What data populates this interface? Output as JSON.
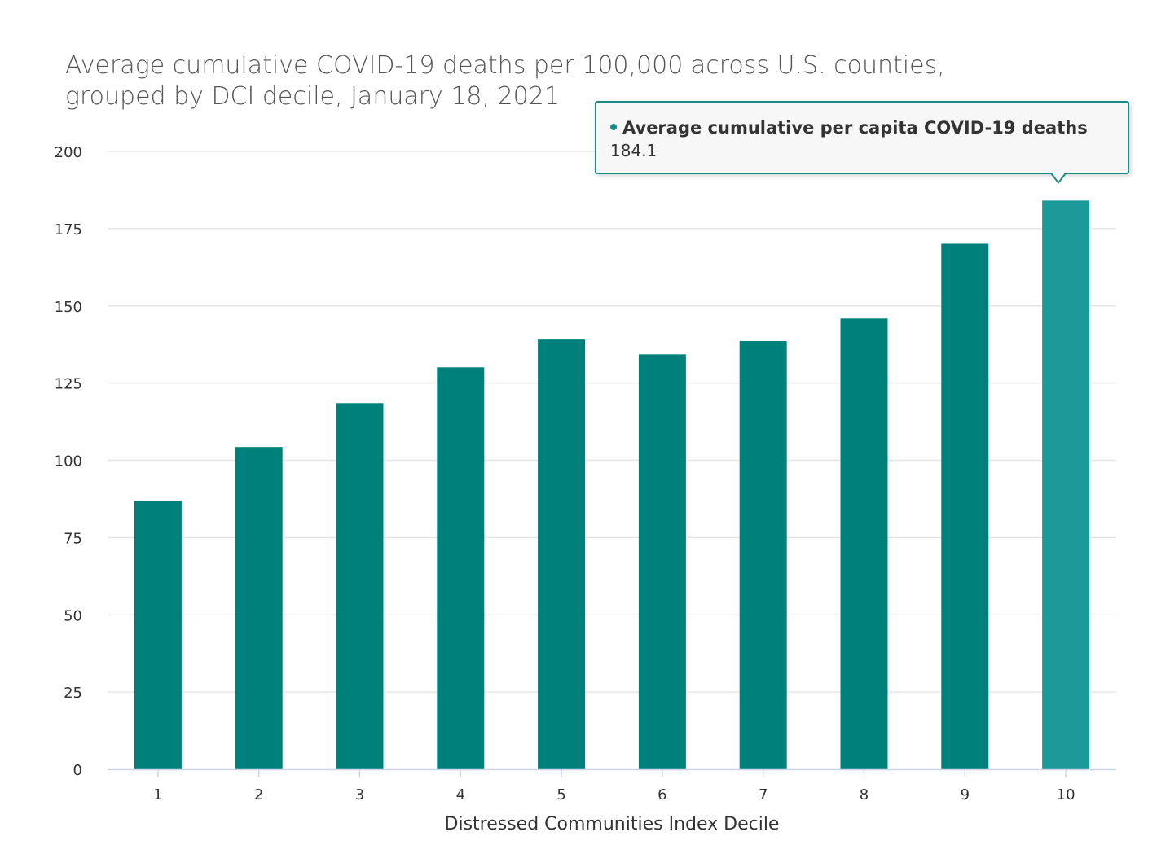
{
  "chart_data": {
    "type": "bar",
    "title": [
      "Average cumulative COVID-19 deaths per 100,000 across U.S. counties,",
      "grouped by DCI decile, January 18, 2021"
    ],
    "xlabel": "Distressed Communities Index Decile",
    "ylabel": "",
    "categories": [
      "1",
      "2",
      "3",
      "4",
      "5",
      "6",
      "7",
      "8",
      "9",
      "10"
    ],
    "series": [
      {
        "name": "Average cumulative per capita COVID-19 deaths",
        "values": [
          86.8,
          104.3,
          118.5,
          130.1,
          139.1,
          134.3,
          138.6,
          145.9,
          170.1,
          184.1
        ]
      }
    ],
    "ylim": [
      0,
      200
    ],
    "yticks": [
      0,
      25,
      50,
      75,
      100,
      125,
      150,
      175,
      200
    ],
    "grid": true,
    "legend": "none",
    "colors": {
      "bar": "#00807a",
      "bar_highlight": "#1b9a99",
      "grid": "#e6e6e6",
      "axis": "#ccd6eb"
    },
    "highlighted_index": 9,
    "tooltip": {
      "series_name": "Average cumulative per capita COVID-19 deaths",
      "value": "184.1"
    }
  }
}
